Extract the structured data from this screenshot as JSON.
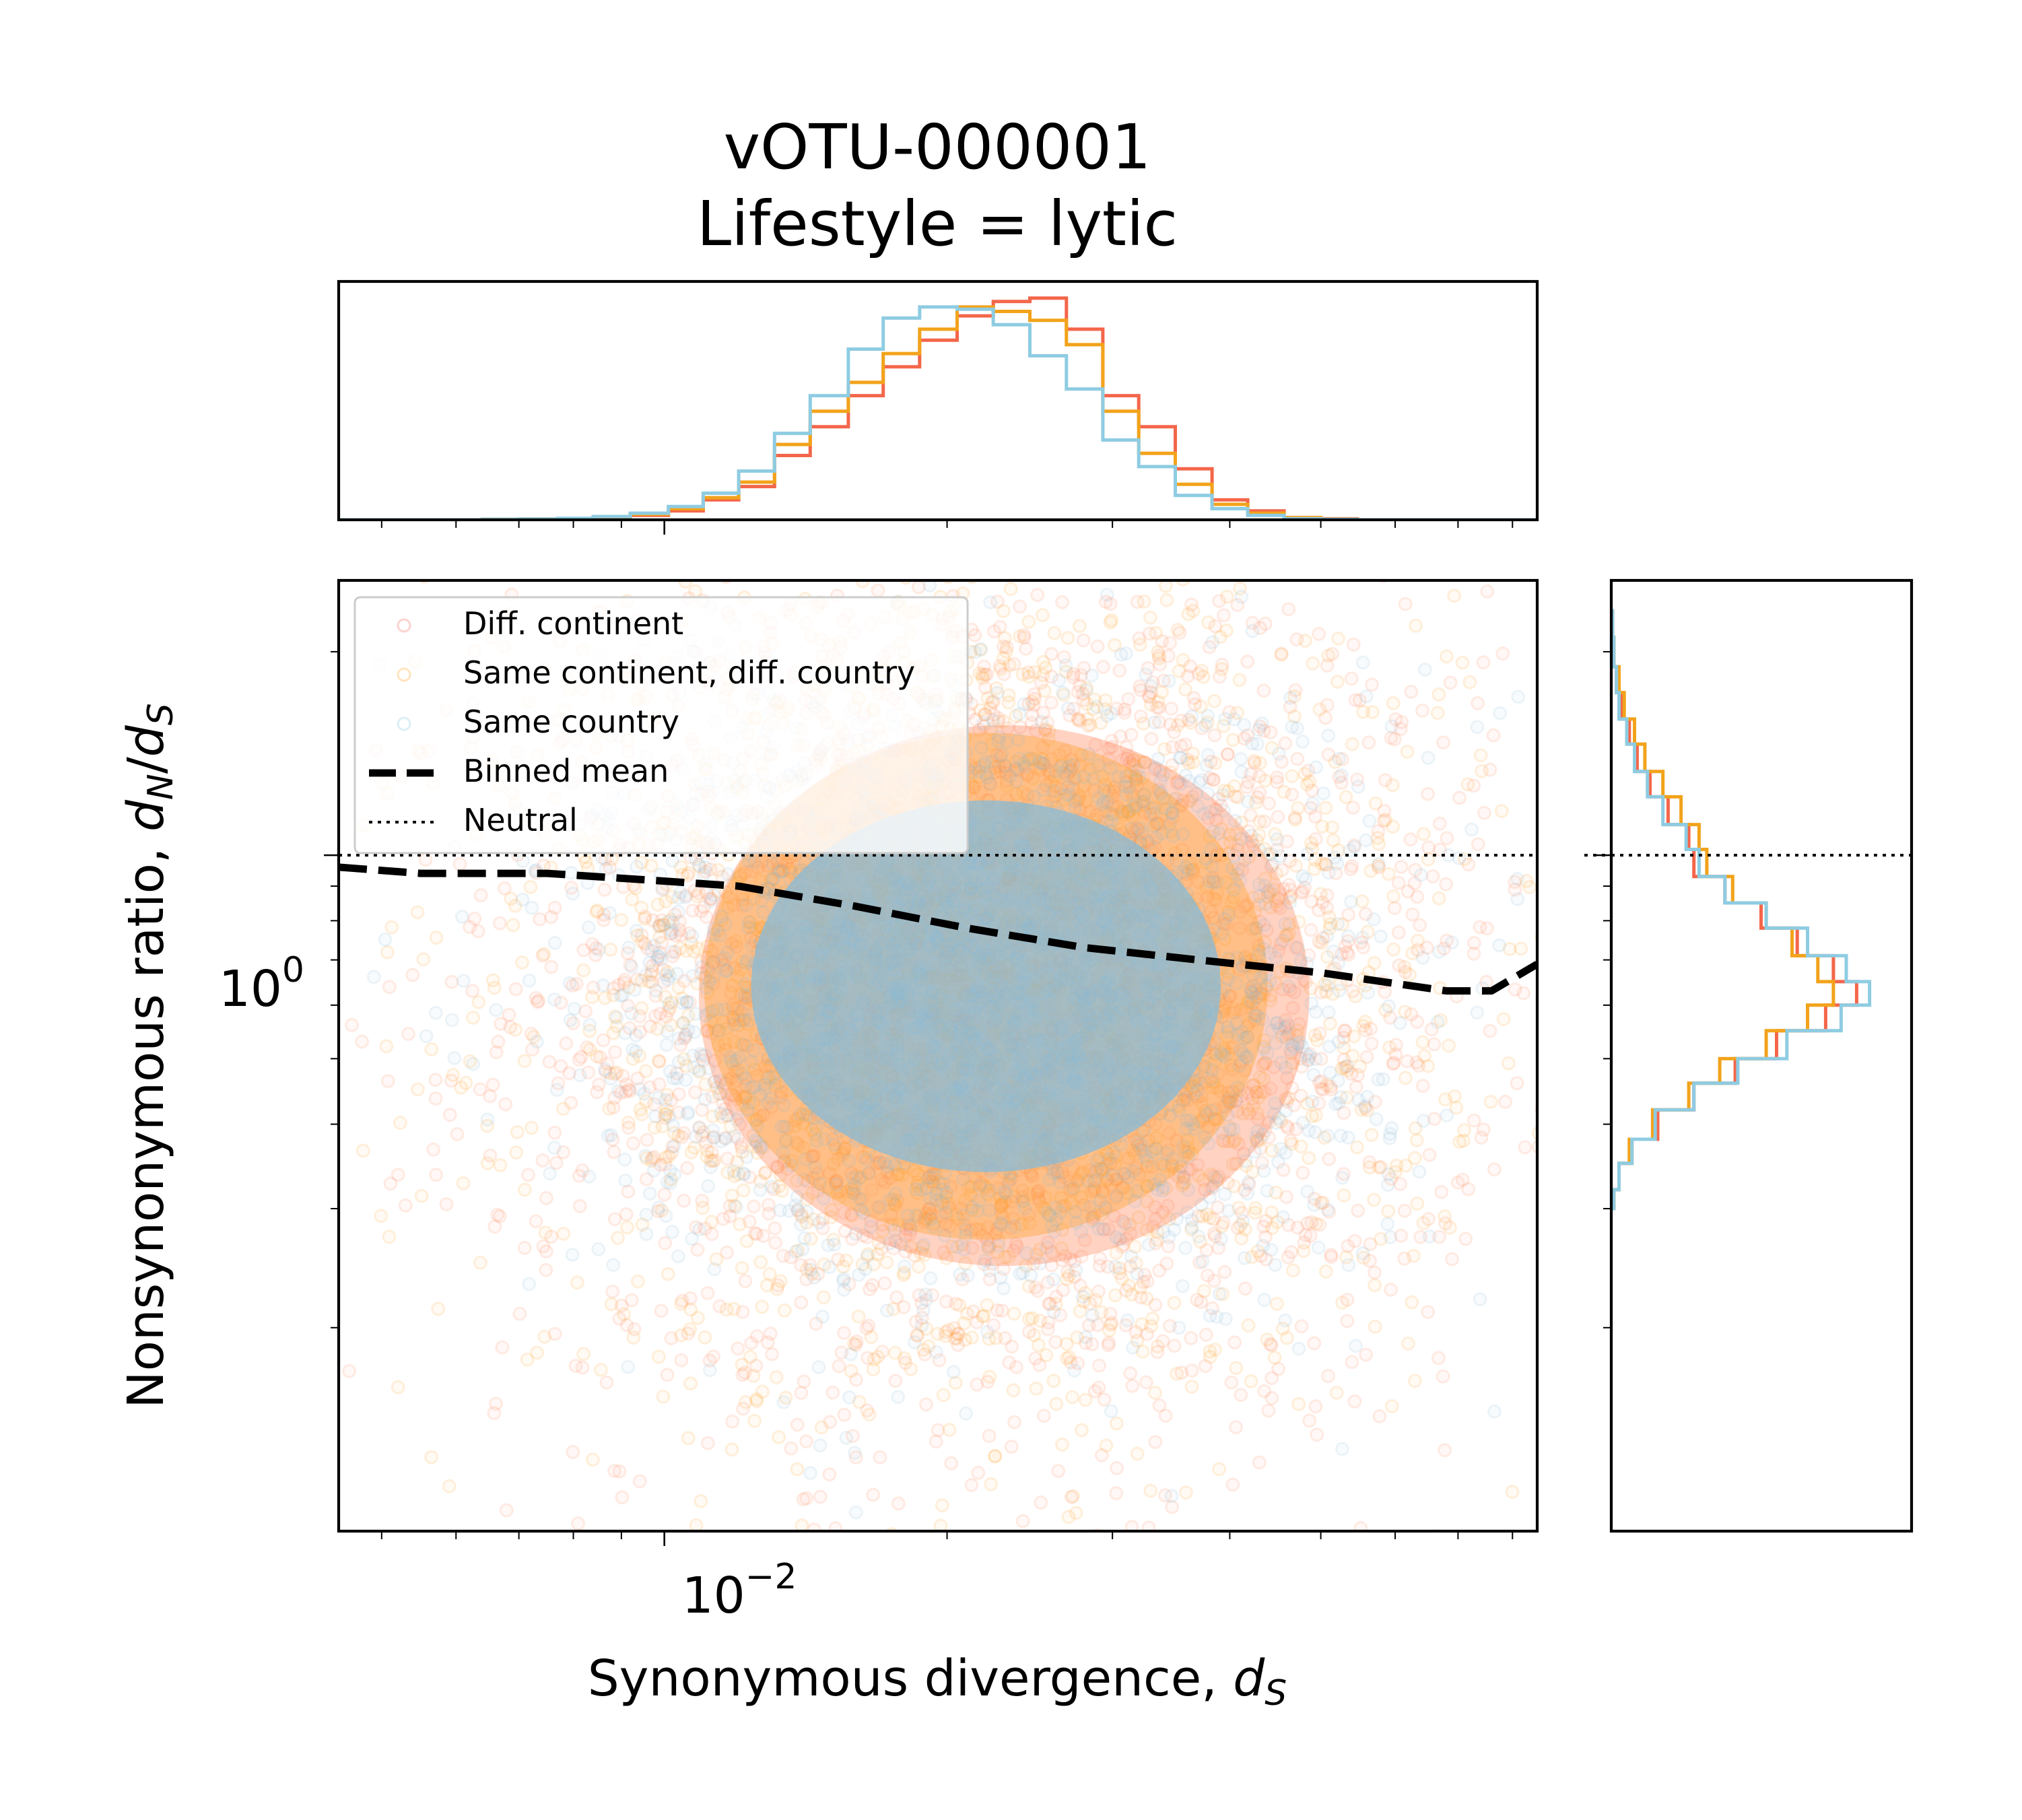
{
  "chart_data": {
    "type": "scatter",
    "title": "vOTU-000001",
    "subtitle": "Lifestyle = lytic",
    "xlabel": "Synonymous divergence, ",
    "xlabel_math": "d",
    "xlabel_sub": "S",
    "ylabel": "Nonsynonymous ratio, ",
    "ylabel_math_n": "d",
    "ylabel_sub_n": "N",
    "ylabel_sep": "/",
    "ylabel_math_s": "d",
    "ylabel_sub_s": "S",
    "xscale": "log",
    "yscale": "log",
    "xlim": [
      0.0045,
      0.085
    ],
    "ylim": [
      0.1,
      2.55
    ],
    "x_tick_labels": [
      {
        "value": 0.01,
        "base": "10",
        "exp": "−2"
      }
    ],
    "y_tick_labels": [
      {
        "value": 1,
        "base": "10",
        "exp": "0"
      }
    ],
    "grid": false,
    "legend_placement": "upper-left",
    "legend": [
      {
        "label": "Diff. continent",
        "kind": "marker",
        "color": "#FA8072"
      },
      {
        "label": "Same continent, diff. country",
        "kind": "marker",
        "color": "#FFB347"
      },
      {
        "label": "Same country",
        "kind": "marker",
        "color": "#9BD1E8"
      },
      {
        "label": "Binned mean",
        "kind": "dashed",
        "color": "#000000"
      },
      {
        "label": "Neutral",
        "kind": "dotted",
        "color": "#000000"
      }
    ],
    "series": [
      {
        "name": "Diff. continent",
        "color": "#FF7F50",
        "center_x": 0.023,
        "center_y": 0.62,
        "spread_logx": 0.26,
        "spread_logy": 0.32
      },
      {
        "name": "Same continent, diff. country",
        "color": "#FF9F1A",
        "center_x": 0.022,
        "center_y": 0.64,
        "spread_logx": 0.24,
        "spread_logy": 0.3
      },
      {
        "name": "Same country",
        "color": "#87BBD8",
        "center_x": 0.022,
        "center_y": 0.64,
        "spread_logx": 0.2,
        "spread_logy": 0.22
      }
    ],
    "binned_mean": {
      "x": [
        0.0045,
        0.0055,
        0.0075,
        0.0095,
        0.012,
        0.016,
        0.021,
        0.028,
        0.037,
        0.05,
        0.068,
        0.076,
        0.085
      ],
      "y": [
        0.96,
        0.94,
        0.94,
        0.92,
        0.9,
        0.84,
        0.78,
        0.73,
        0.7,
        0.67,
        0.63,
        0.63,
        0.69
      ]
    },
    "neutral_y": 1,
    "x_marginal": {
      "bin_edges": [
        0.0045,
        0.0049,
        0.0054,
        0.0059,
        0.0064,
        0.007,
        0.0077,
        0.0084,
        0.0092,
        0.0101,
        0.011,
        0.012,
        0.0131,
        0.0143,
        0.0157,
        0.0171,
        0.0187,
        0.0205,
        0.0224,
        0.0245,
        0.0268,
        0.0293,
        0.032,
        0.035,
        0.0383,
        0.0418,
        0.0457,
        0.05,
        0.0547,
        0.0598,
        0.0654,
        0.0714,
        0.0781,
        0.0854
      ],
      "series": [
        {
          "name": "Diff. continent",
          "color": "#F4664A",
          "counts": [
            0,
            0,
            0,
            0,
            0.002,
            0.003,
            0.005,
            0.01,
            0.02,
            0.04,
            0.09,
            0.15,
            0.29,
            0.42,
            0.56,
            0.69,
            0.81,
            0.92,
            0.985,
            1.0,
            0.86,
            0.56,
            0.42,
            0.23,
            0.09,
            0.04,
            0.01,
            0.005,
            0,
            0,
            0,
            0,
            0
          ]
        },
        {
          "name": "Same continent, diff. country",
          "color": "#F2A31B",
          "counts": [
            0,
            0,
            0,
            0,
            0.002,
            0.004,
            0.006,
            0.012,
            0.025,
            0.05,
            0.1,
            0.17,
            0.34,
            0.49,
            0.62,
            0.75,
            0.86,
            0.96,
            0.94,
            0.9,
            0.79,
            0.49,
            0.3,
            0.16,
            0.07,
            0.03,
            0.01,
            0.003,
            0,
            0,
            0,
            0,
            0
          ]
        },
        {
          "name": "Same country",
          "color": "#8ECCE2",
          "counts": [
            0,
            0,
            0,
            0,
            0.002,
            0.004,
            0.007,
            0.015,
            0.03,
            0.06,
            0.12,
            0.22,
            0.39,
            0.56,
            0.77,
            0.91,
            0.96,
            0.95,
            0.88,
            0.74,
            0.59,
            0.36,
            0.24,
            0.11,
            0.05,
            0.02,
            0.005,
            0.002,
            0,
            0,
            0,
            0,
            0
          ]
        }
      ]
    },
    "y_marginal": {
      "bin_edges": [
        0.3,
        0.32,
        0.35,
        0.38,
        0.42,
        0.46,
        0.5,
        0.55,
        0.6,
        0.65,
        0.71,
        0.78,
        0.85,
        0.93,
        1.02,
        1.11,
        1.22,
        1.33,
        1.46,
        1.59,
        1.74,
        1.9,
        2.1,
        2.3
      ],
      "series": [
        {
          "name": "Diff. continent",
          "color": "#F4664A",
          "counts": [
            0.01,
            0.03,
            0.08,
            0.18,
            0.32,
            0.48,
            0.64,
            0.83,
            0.95,
            0.86,
            0.72,
            0.58,
            0.44,
            0.32,
            0.3,
            0.22,
            0.15,
            0.1,
            0.07,
            0.04,
            0.02,
            0.01,
            0.005
          ]
        },
        {
          "name": "Same continent, diff. country",
          "color": "#F2A31B",
          "counts": [
            0.01,
            0.03,
            0.07,
            0.16,
            0.3,
            0.42,
            0.6,
            0.76,
            0.86,
            0.8,
            0.7,
            0.6,
            0.47,
            0.37,
            0.34,
            0.27,
            0.2,
            0.13,
            0.09,
            0.05,
            0.03,
            0.01,
            0.005
          ]
        },
        {
          "name": "Same country",
          "color": "#8ECCE2",
          "counts": [
            0.01,
            0.03,
            0.08,
            0.17,
            0.32,
            0.49,
            0.68,
            0.89,
            1.0,
            0.91,
            0.76,
            0.6,
            0.44,
            0.34,
            0.29,
            0.2,
            0.14,
            0.09,
            0.06,
            0.03,
            0.02,
            0.01,
            0.005
          ]
        }
      ]
    }
  }
}
